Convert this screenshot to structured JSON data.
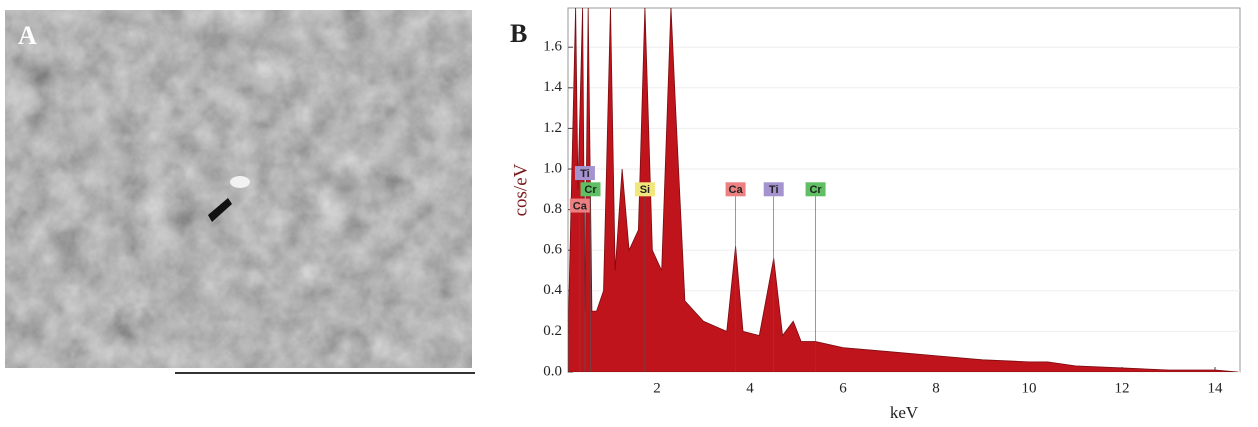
{
  "panel_labels": [
    "A",
    "B"
  ],
  "chart_data": {
    "type": "area",
    "xlabel": "keV",
    "ylabel": "cos/eV",
    "x": [
      0.1,
      0.2,
      0.25,
      0.3,
      0.4,
      0.45,
      0.52,
      0.6,
      0.7,
      0.85,
      1.0,
      1.1,
      1.25,
      1.4,
      1.6,
      1.74,
      1.9,
      2.1,
      2.3,
      2.4,
      2.6,
      2.8,
      3.0,
      3.3,
      3.5,
      3.69,
      3.85,
      4.2,
      4.51,
      4.7,
      4.93,
      5.1,
      5.41,
      6,
      7,
      8,
      9,
      10,
      10.4,
      11,
      12,
      13,
      14,
      14.5
    ],
    "series": [
      {
        "color": "#c0141c",
        "values": [
          0.3,
          1.3,
          1.8,
          0.9,
          1.8,
          0.3,
          1.8,
          0.3,
          0.3,
          0.4,
          1.8,
          0.5,
          1.0,
          0.6,
          0.7,
          1.8,
          0.6,
          0.5,
          1.8,
          1.3,
          0.35,
          0.3,
          0.25,
          0.22,
          0.2,
          0.62,
          0.2,
          0.18,
          0.56,
          0.18,
          0.25,
          0.15,
          0.15,
          0.12,
          0.1,
          0.08,
          0.06,
          0.05,
          0.05,
          0.03,
          0.02,
          0.01,
          0.01,
          0
        ]
      }
    ],
    "xlim": [
      0,
      14.5
    ],
    "ylim": [
      0,
      1.8
    ],
    "xticks": [
      2,
      4,
      6,
      8,
      10,
      12,
      14
    ],
    "yticks": [
      {
        "value": 0,
        "label": "0.0"
      },
      0.2,
      0.4,
      0.6,
      0.8,
      {
        "value": 1,
        "label": "1.0"
      },
      1.2,
      1.4,
      1.6
    ],
    "grid": true,
    "peak_labels": [
      {
        "text": "Ti",
        "x": 0.45,
        "y": 0.98,
        "color": "#a493cf"
      },
      {
        "text": "Cr",
        "x": 0.57,
        "y": 0.9,
        "color": "#5fbf62"
      },
      {
        "text": "Ca",
        "x": 0.34,
        "y": 0.82,
        "color": "#ec7f82"
      },
      {
        "text": "Si",
        "x": 1.74,
        "y": 0.9,
        "color": "#f2e77c"
      },
      {
        "text": "Ca",
        "x": 3.69,
        "y": 0.9,
        "color": "#ec7f82"
      },
      {
        "text": "Ti",
        "x": 4.51,
        "y": 0.9,
        "color": "#a493cf"
      },
      {
        "text": "Cr",
        "x": 5.41,
        "y": 0.9,
        "color": "#5fbf62"
      }
    ]
  }
}
